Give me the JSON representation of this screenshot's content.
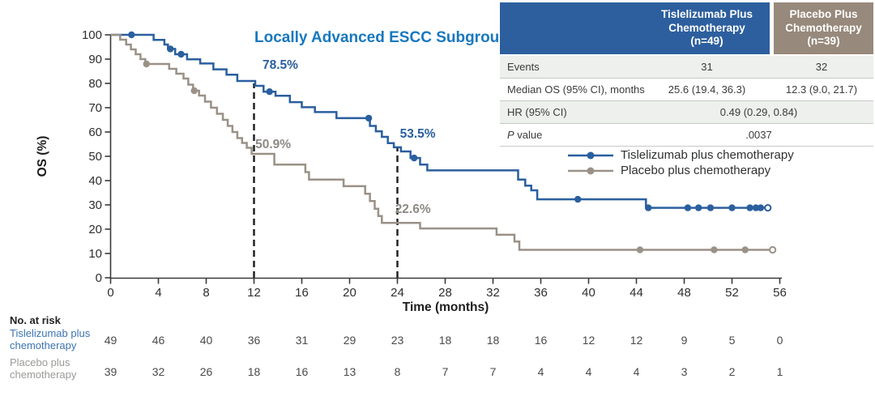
{
  "title": "Locally Advanced ESCC Subgroup",
  "colors": {
    "tislelizumab": "#2A5F9F",
    "placebo": "#9A9187",
    "title_blue": "#1878BE",
    "header_blue": "#2D5F9E",
    "header_tan": "#97897B",
    "row_shade": "#EDF0EC",
    "risk_label_blue": "#3C74B0",
    "annotation_gray": "#8E8A85",
    "axis": "#3A3A3A"
  },
  "chart_data": {
    "type": "line",
    "subtype": "kaplan-meier-step",
    "title": "Locally Advanced ESCC Subgroup",
    "xlabel": "Time (months)",
    "ylabel": "OS (%)",
    "xlim": [
      0,
      56
    ],
    "ylim": [
      0,
      100
    ],
    "xticks": [
      0,
      4,
      8,
      12,
      16,
      20,
      24,
      28,
      32,
      36,
      40,
      44,
      48,
      52,
      56
    ],
    "yticks": [
      0,
      10,
      20,
      30,
      40,
      50,
      60,
      70,
      80,
      90,
      100
    ],
    "grid": false,
    "legend_position": "right-middle",
    "series": [
      {
        "name": "Tislelizumab plus chemotherapy",
        "color_key": "tislelizumab",
        "start": [
          0,
          100
        ],
        "steps": [
          [
            3.6,
            97.9
          ],
          [
            4.5,
            96.0
          ],
          [
            4.8,
            94.2
          ],
          [
            5.4,
            92.0
          ],
          [
            6.4,
            89.9
          ],
          [
            7.5,
            88.2
          ],
          [
            8.6,
            85.8
          ],
          [
            9.7,
            83.6
          ],
          [
            10.6,
            81.0
          ],
          [
            12.1,
            79.0
          ],
          [
            12.8,
            76.6
          ],
          [
            13.8,
            74.9
          ],
          [
            15.0,
            72.3
          ],
          [
            16.0,
            70.2
          ],
          [
            17.1,
            68.2
          ],
          [
            18.9,
            65.7
          ],
          [
            21.7,
            62.5
          ],
          [
            22.2,
            60.3
          ],
          [
            22.7,
            58.0
          ],
          [
            23.2,
            55.4
          ],
          [
            23.7,
            53.7
          ],
          [
            24.3,
            52.0
          ],
          [
            25.1,
            49.3
          ],
          [
            25.9,
            46.6
          ],
          [
            26.5,
            44.2
          ],
          [
            34.1,
            40.4
          ],
          [
            34.7,
            37.9
          ],
          [
            35.2,
            36.0
          ],
          [
            35.7,
            32.3
          ],
          [
            44.8,
            28.8
          ]
        ],
        "end_time": 55.0,
        "censors": [
          [
            1.75,
            100
          ],
          [
            5.0,
            94.2
          ],
          [
            5.9,
            92.0
          ],
          [
            13.3,
            76.6
          ],
          [
            21.6,
            65.7
          ],
          [
            25.4,
            49.3
          ],
          [
            39.1,
            32.3
          ],
          [
            45.0,
            28.8
          ],
          [
            48.3,
            28.8
          ],
          [
            49.2,
            28.8
          ],
          [
            50.2,
            28.8
          ],
          [
            52.0,
            28.8
          ],
          [
            53.5,
            28.8
          ],
          [
            54.0,
            28.8
          ],
          [
            54.4,
            28.8
          ]
        ],
        "end_open": [
          55.0,
          28.8
        ],
        "landmark_12mo": "78.5%",
        "landmark_24mo": "53.5%"
      },
      {
        "name": "Placebo plus chemotherapy",
        "color_key": "placebo",
        "start": [
          0,
          100
        ],
        "steps": [
          [
            0.8,
            98.0
          ],
          [
            1.3,
            96.0
          ],
          [
            1.7,
            94.0
          ],
          [
            2.1,
            92.0
          ],
          [
            2.5,
            90.0
          ],
          [
            2.9,
            88.0
          ],
          [
            4.9,
            86.0
          ],
          [
            5.5,
            84.0
          ],
          [
            6.1,
            82.0
          ],
          [
            6.5,
            79.5
          ],
          [
            6.9,
            77.0
          ],
          [
            7.4,
            75.0
          ],
          [
            7.9,
            72.5
          ],
          [
            8.4,
            70.0
          ],
          [
            8.9,
            67.5
          ],
          [
            9.4,
            65.0
          ],
          [
            9.8,
            62.5
          ],
          [
            10.2,
            60.0
          ],
          [
            10.6,
            57.5
          ],
          [
            11.0,
            55.5
          ],
          [
            11.4,
            53.5
          ],
          [
            11.8,
            51.0
          ],
          [
            13.7,
            46.6
          ],
          [
            16.3,
            43.5
          ],
          [
            16.6,
            40.4
          ],
          [
            19.5,
            37.7
          ],
          [
            21.3,
            34.6
          ],
          [
            21.7,
            31.6
          ],
          [
            22.1,
            28.4
          ],
          [
            22.4,
            25.4
          ],
          [
            22.7,
            22.6
          ],
          [
            25.9,
            20.3
          ],
          [
            32.3,
            17.7
          ],
          [
            33.8,
            14.9
          ],
          [
            34.2,
            11.5
          ]
        ],
        "end_time": 55.4,
        "censors": [
          [
            3.0,
            88.0
          ],
          [
            7.0,
            77.0
          ],
          [
            44.3,
            11.5
          ],
          [
            50.5,
            11.5
          ],
          [
            53.1,
            11.5
          ]
        ],
        "end_open": [
          55.4,
          11.5
        ],
        "landmark_12mo": "50.9%",
        "landmark_24mo": "22.6%"
      }
    ],
    "dashed_lines": [
      {
        "x": 12,
        "y_top": 80
      },
      {
        "x": 24,
        "y_top": 54
      }
    ],
    "annotations": [
      {
        "text": "78.5%",
        "x": 14.2,
        "y": 86.0,
        "color": "#2A5F9F"
      },
      {
        "text": "50.9%",
        "x": 13.6,
        "y": 53.3,
        "color": "#8E8A85"
      },
      {
        "text": "53.5%",
        "x": 25.7,
        "y": 57.7,
        "color": "#2A5F9F"
      },
      {
        "text": "22.6%",
        "x": 25.3,
        "y": 26.7,
        "color": "#8E8A85"
      }
    ]
  },
  "stats_table": {
    "columns": [
      {
        "header": "Tislelizumab Plus\nChemotherapy\n(n=49)"
      },
      {
        "header": "Placebo Plus\nChemotherapy\n(n=39)"
      }
    ],
    "rows": [
      {
        "label": "Events",
        "tislelizumab": "31",
        "placebo": "32"
      },
      {
        "label": "Median OS (95% CI), months",
        "tislelizumab": "25.6 (19.4, 36.3)",
        "placebo": "12.3 (9.0, 21.7)"
      },
      {
        "label": "HR (95% CI)",
        "combined": "0.49 (0.29, 0.84)"
      },
      {
        "label_p": "P",
        "label_rest": " value",
        "combined": ".0037"
      }
    ]
  },
  "legend": {
    "items": [
      {
        "label": "Tislelizumab plus chemotherapy"
      },
      {
        "label": "Placebo plus chemotherapy"
      }
    ]
  },
  "risk_table": {
    "heading": "No. at risk",
    "timepoints": [
      0,
      4,
      8,
      12,
      16,
      20,
      24,
      28,
      32,
      36,
      40,
      44,
      48,
      52,
      56
    ],
    "rows": [
      {
        "label": "Tislelizumab plus\nchemotherapy",
        "values": [
          49,
          46,
          40,
          36,
          31,
          29,
          23,
          18,
          18,
          16,
          12,
          12,
          9,
          5,
          0
        ]
      },
      {
        "label": "Placebo plus\nchemotherapy",
        "values": [
          39,
          32,
          26,
          18,
          16,
          13,
          8,
          7,
          7,
          4,
          4,
          4,
          3,
          2,
          1
        ]
      }
    ]
  }
}
